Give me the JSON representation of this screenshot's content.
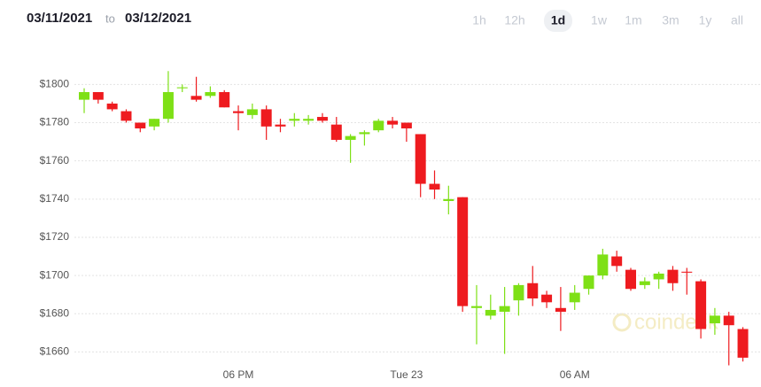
{
  "header": {
    "from": "03/11/2021",
    "to_label": "to",
    "to": "03/12/2021",
    "ranges": [
      "1h",
      "12h",
      "1d",
      "1w",
      "1m",
      "3m",
      "1y",
      "all"
    ],
    "selected": "1d"
  },
  "chart_data": {
    "type": "candlestick",
    "watermark": "coindesk",
    "categories": [
      null,
      null,
      null,
      null,
      null,
      null,
      null,
      null,
      null,
      null,
      null,
      "06 PM",
      null,
      null,
      null,
      null,
      null,
      null,
      null,
      null,
      null,
      null,
      null,
      "Tue 23",
      null,
      null,
      null,
      null,
      null,
      null,
      null,
      null,
      null,
      null,
      null,
      "06 AM",
      null,
      null,
      null,
      null,
      null,
      null,
      null,
      null,
      null,
      null,
      null,
      null
    ],
    "open": [
      1792,
      1796,
      1790,
      1786,
      1780,
      1778,
      1782,
      1798,
      1794,
      1794,
      1796,
      1786,
      1784,
      1787,
      1779,
      1781,
      1781,
      1783,
      1779,
      1771,
      1774,
      1776,
      1781,
      1780,
      1774,
      1748,
      1739,
      1741,
      1683,
      1679,
      1681,
      1687,
      1696,
      1690,
      1683,
      1686,
      1693,
      1700,
      1710,
      1703,
      1695,
      1698,
      1703,
      1702,
      1697,
      1675,
      1679,
      1672
    ],
    "high": [
      1798,
      1796,
      1791,
      1787,
      1780,
      1782,
      1807,
      1800,
      1804,
      1799,
      1797,
      1789,
      1790,
      1789,
      1782,
      1785,
      1784,
      1785,
      1783,
      1774,
      1776,
      1782,
      1783,
      1780,
      1774,
      1755,
      1747,
      1741,
      1695,
      1690,
      1694,
      1696,
      1705,
      1692,
      1694,
      1695,
      1700,
      1714,
      1713,
      1704,
      1699,
      1702,
      1705,
      1704,
      1698,
      1683,
      1681,
      1673
    ],
    "low": [
      1785,
      1790,
      1786,
      1780,
      1775,
      1776,
      1780,
      1796,
      1791,
      1793,
      1788,
      1776,
      1782,
      1771,
      1775,
      1778,
      1779,
      1780,
      1770,
      1759,
      1768,
      1775,
      1777,
      1770,
      1741,
      1740,
      1732,
      1681,
      1664,
      1677,
      1659,
      1679,
      1684,
      1683,
      1671,
      1682,
      1690,
      1698,
      1702,
      1692,
      1693,
      1693,
      1692,
      1690,
      1667,
      1669,
      1653,
      1655
    ],
    "close": [
      1796,
      1792,
      1787,
      1781,
      1777,
      1782,
      1796,
      1798.5,
      1792,
      1796,
      1788,
      1785,
      1787,
      1778,
      1778,
      1782,
      1782,
      1781,
      1771,
      1773,
      1775,
      1781,
      1779,
      1777,
      1748,
      1745,
      1740,
      1684,
      1684,
      1682,
      1684,
      1695,
      1688,
      1686,
      1681,
      1691,
      1700,
      1711,
      1705,
      1693,
      1697,
      1701,
      1696,
      1701.5,
      1672,
      1679,
      1674,
      1657
    ],
    "up_color": "#7ee016",
    "down_color": "#ee1b1f",
    "ylim": [
      1650,
      1815
    ],
    "yticks": [
      {
        "value": 1660,
        "label": "$1660"
      },
      {
        "value": 1680,
        "label": "$1680"
      },
      {
        "value": 1700,
        "label": "$1700"
      },
      {
        "value": 1720,
        "label": "$1720"
      },
      {
        "value": 1740,
        "label": "$1740"
      },
      {
        "value": 1760,
        "label": "$1760"
      },
      {
        "value": 1780,
        "label": "$1780"
      },
      {
        "value": 1800,
        "label": "$1800"
      }
    ],
    "grid": true
  }
}
